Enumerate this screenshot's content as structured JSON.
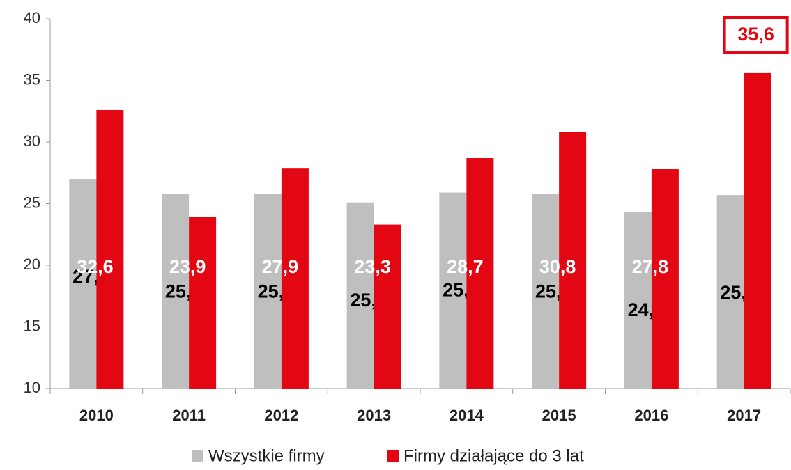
{
  "chart_data": {
    "type": "bar",
    "categories": [
      "2010",
      "2011",
      "2012",
      "2013",
      "2014",
      "2015",
      "2016",
      "2017"
    ],
    "series": [
      {
        "name": "Wszystkie firmy",
        "color": "#bfbfbf",
        "values": [
          27.0,
          25.8,
          25.8,
          25.1,
          25.9,
          25.8,
          24.3,
          25.7
        ],
        "value_labels": [
          "27,0",
          "25,8",
          "25,8",
          "25,1",
          "25,9",
          "25,8",
          "24,3",
          "25,7"
        ]
      },
      {
        "name": "Firmy działające do 3 lat",
        "color": "#e30613",
        "values": [
          32.6,
          23.9,
          27.9,
          23.3,
          28.7,
          30.8,
          27.8,
          35.6
        ],
        "value_labels": [
          "32,6",
          "23,9",
          "27,9",
          "23,3",
          "28,7",
          "30,8",
          "27,8",
          "35,6"
        ]
      }
    ],
    "ylim": [
      10,
      40
    ],
    "yticks": [
      10,
      15,
      20,
      25,
      30,
      35,
      40
    ],
    "grid": false,
    "legend": "bottom"
  }
}
